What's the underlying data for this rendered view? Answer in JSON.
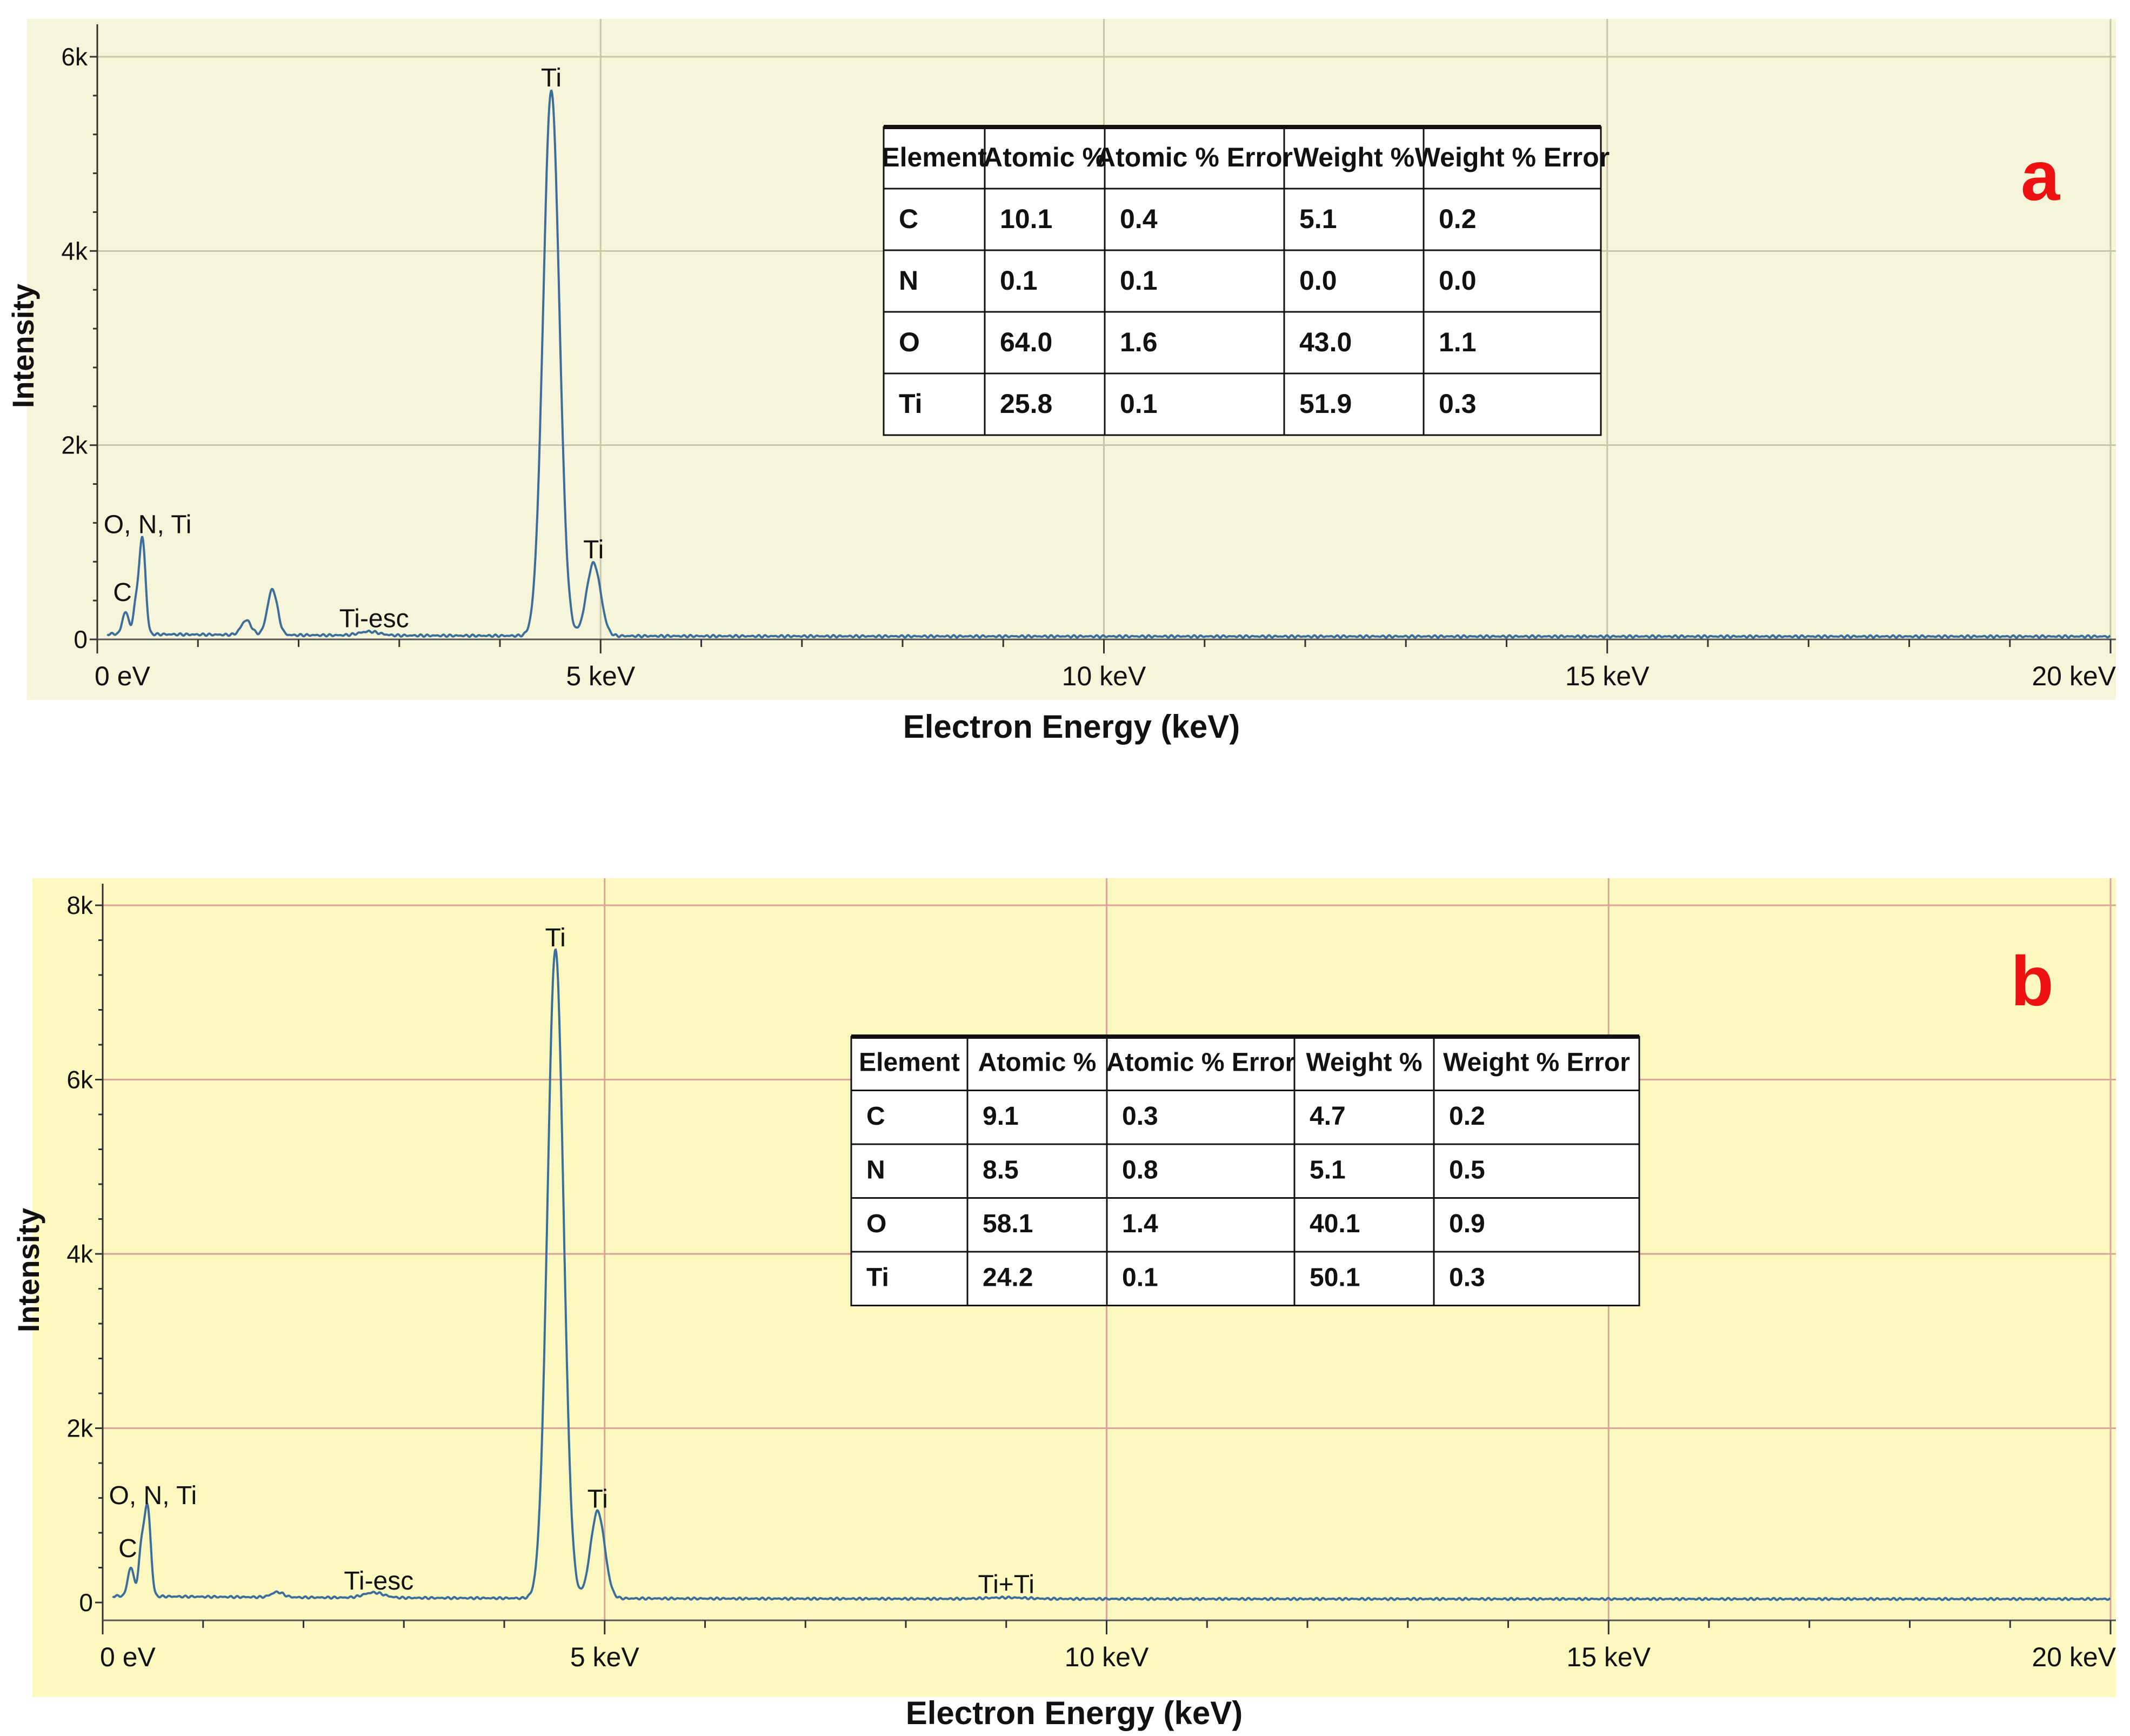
{
  "chart_data": [
    {
      "type": "line",
      "panel_label": "a",
      "xlabel": "Electron Energy (keV)",
      "ylabel": "Intensity",
      "xlim": [
        0,
        20
      ],
      "ylim": [
        0,
        6000
      ],
      "x_ticks": [
        {
          "value": 0,
          "label": "0 eV"
        },
        {
          "value": 5,
          "label": "5 keV"
        },
        {
          "value": 10,
          "label": "10 keV"
        },
        {
          "value": 15,
          "label": "15 keV"
        },
        {
          "value": 20,
          "label": "20 keV"
        }
      ],
      "y_ticks": [
        {
          "value": 0,
          "label": "0"
        },
        {
          "value": 2000,
          "label": "2k"
        },
        {
          "value": 4000,
          "label": "4k"
        },
        {
          "value": 6000,
          "label": "6k"
        }
      ],
      "grid": true,
      "background": "#f7f5d9",
      "grid_color": "#c9c6a8",
      "line_color": "#3b6e9a",
      "peaks": [
        {
          "x": 0.28,
          "y": 230,
          "width": 0.03
        },
        {
          "x": 0.39,
          "y": 330,
          "width": 0.03
        },
        {
          "x": 0.45,
          "y": 950,
          "width": 0.03
        },
        {
          "x": 1.48,
          "y": 150,
          "width": 0.05
        },
        {
          "x": 1.74,
          "y": 470,
          "width": 0.05
        },
        {
          "x": 2.7,
          "y": 40,
          "width": 0.1
        },
        {
          "x": 4.51,
          "y": 5620,
          "width": 0.08
        },
        {
          "x": 4.93,
          "y": 750,
          "width": 0.07
        }
      ],
      "baseline": 30,
      "annotations": [
        {
          "text": "Ti",
          "x": 4.51,
          "y": 5650
        },
        {
          "text": "Ti",
          "x": 4.93,
          "y": 790
        },
        {
          "text": "O, N, Ti",
          "x": 0.5,
          "y": 1050
        },
        {
          "text": "C",
          "x": 0.25,
          "y": 350
        },
        {
          "text": "Ti-esc",
          "x": 2.75,
          "y": 80
        }
      ],
      "table": {
        "headers": [
          "Element",
          "Atomic %",
          "Atomic % Error",
          "Weight %",
          "Weight % Error"
        ],
        "rows": [
          [
            "C",
            "10.1",
            "0.4",
            "5.1",
            "0.2"
          ],
          [
            "N",
            "0.1",
            "0.1",
            "0.0",
            "0.0"
          ],
          [
            "O",
            "64.0",
            "1.6",
            "43.0",
            "1.1"
          ],
          [
            "Ti",
            "25.8",
            "0.1",
            "51.9",
            "0.3"
          ]
        ]
      }
    },
    {
      "type": "line",
      "panel_label": "b",
      "xlabel": "Electron Energy (keV)",
      "ylabel": "Intensity",
      "xlim": [
        0,
        20
      ],
      "ylim": [
        0,
        8000
      ],
      "x_ticks": [
        {
          "value": 0,
          "label": "0 eV"
        },
        {
          "value": 5,
          "label": "5 keV"
        },
        {
          "value": 10,
          "label": "10 keV"
        },
        {
          "value": 15,
          "label": "15 keV"
        },
        {
          "value": 20,
          "label": "20 keV"
        }
      ],
      "y_ticks": [
        {
          "value": 0,
          "label": "0"
        },
        {
          "value": 2000,
          "label": "2k"
        },
        {
          "value": 4000,
          "label": "4k"
        },
        {
          "value": 6000,
          "label": "6k"
        },
        {
          "value": 8000,
          "label": "8k"
        }
      ],
      "grid": true,
      "background": "#fdf7c0",
      "grid_color": "#dca39a",
      "line_color": "#3b6e9a",
      "peaks": [
        {
          "x": 0.28,
          "y": 330,
          "width": 0.03
        },
        {
          "x": 0.39,
          "y": 580,
          "width": 0.03
        },
        {
          "x": 0.45,
          "y": 960,
          "width": 0.03
        },
        {
          "x": 1.74,
          "y": 60,
          "width": 0.06
        },
        {
          "x": 2.7,
          "y": 60,
          "width": 0.1
        },
        {
          "x": 4.51,
          "y": 7450,
          "width": 0.08
        },
        {
          "x": 4.93,
          "y": 1000,
          "width": 0.07
        },
        {
          "x": 9.0,
          "y": 15,
          "width": 0.2
        }
      ],
      "baseline": 40,
      "annotations": [
        {
          "text": "Ti",
          "x": 4.51,
          "y": 7480
        },
        {
          "text": "Ti",
          "x": 4.93,
          "y": 1040
        },
        {
          "text": "O, N, Ti",
          "x": 0.5,
          "y": 1080
        },
        {
          "text": "C",
          "x": 0.25,
          "y": 470
        },
        {
          "text": "Ti-esc",
          "x": 2.75,
          "y": 100
        },
        {
          "text": "Ti+Ti",
          "x": 9.0,
          "y": 60
        }
      ],
      "table": {
        "headers": [
          "Element",
          "Atomic %",
          "Atomic % Error",
          "Weight %",
          "Weight % Error"
        ],
        "rows": [
          [
            "C",
            "9.1",
            "0.3",
            "4.7",
            "0.2"
          ],
          [
            "N",
            "8.5",
            "0.8",
            "5.1",
            "0.5"
          ],
          [
            "O",
            "58.1",
            "1.4",
            "40.1",
            "0.9"
          ],
          [
            "Ti",
            "24.2",
            "0.1",
            "50.1",
            "0.3"
          ]
        ]
      }
    }
  ],
  "panel_label_color": "#ee1111"
}
